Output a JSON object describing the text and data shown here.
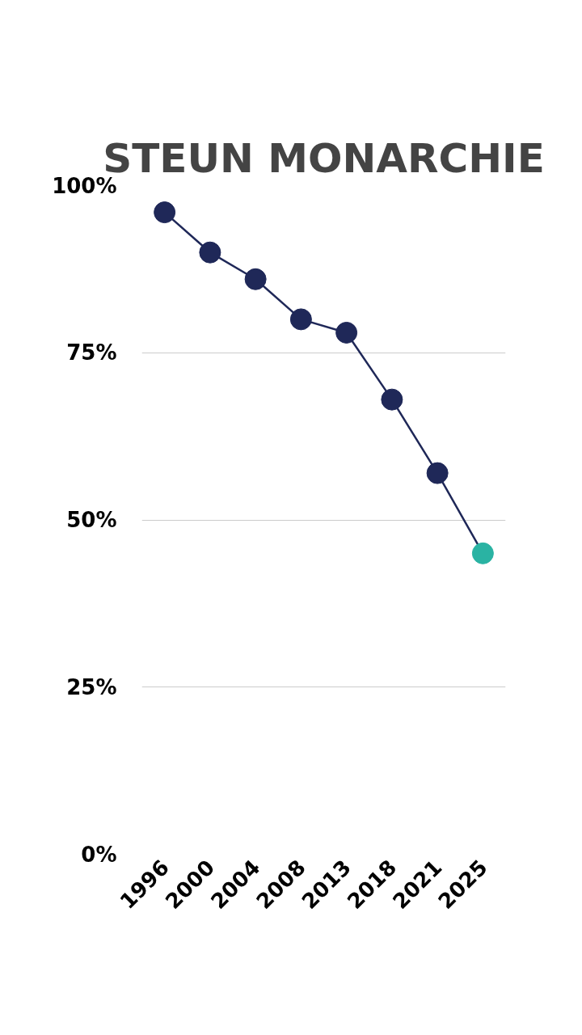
{
  "chart_data": {
    "type": "line",
    "title": "STEUN MONARCHIE",
    "categories": [
      "1996",
      "2000",
      "2004",
      "2008",
      "2013",
      "2018",
      "2021",
      "2025"
    ],
    "series": [
      {
        "color": "#1f2858",
        "colors": [
          "#1f2858",
          "#1f2858",
          "#1f2858",
          "#1f2858",
          "#1f2858",
          "#1f2858",
          "#1f2858",
          "#2ab3a3"
        ],
        "values": [
          96,
          90,
          86,
          80,
          78,
          68,
          57,
          45
        ]
      }
    ],
    "ylim": [
      0,
      100
    ],
    "yticks": [
      {
        "value": 0,
        "label": "0%"
      },
      {
        "value": 25,
        "label": "25%"
      },
      {
        "value": 50,
        "label": "50%"
      },
      {
        "value": 75,
        "label": "75%"
      },
      {
        "value": 100,
        "label": "100%"
      }
    ],
    "grid": "y",
    "marker": "circle",
    "line_style": "solid"
  }
}
